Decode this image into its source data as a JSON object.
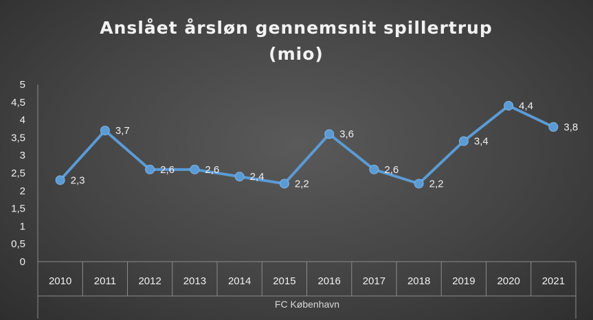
{
  "chart_data": {
    "type": "line",
    "title_line1": "Anslået årsløn gennemsnit spillertrup",
    "title_line2": "(mio)",
    "xlabel": "FC København",
    "ylabel": "",
    "categories": [
      "2010",
      "2011",
      "2012",
      "2013",
      "2014",
      "2015",
      "2016",
      "2017",
      "2018",
      "2019",
      "2020",
      "2021"
    ],
    "values": [
      2.3,
      3.7,
      2.6,
      2.6,
      2.4,
      2.2,
      3.6,
      2.6,
      2.2,
      3.4,
      4.4,
      3.8
    ],
    "data_labels": [
      "2,3",
      "3,7",
      "2,6",
      "2,6",
      "2,4",
      "2,2",
      "3,6",
      "2,6",
      "2,2",
      "3,4",
      "4,4",
      "3,8"
    ],
    "y_ticks": [
      0,
      0.5,
      1,
      1.5,
      2,
      2.5,
      3,
      3.5,
      4,
      4.5,
      5
    ],
    "y_tick_labels": [
      "0",
      "0,5",
      "1",
      "1,5",
      "2",
      "2,5",
      "3",
      "3,5",
      "4",
      "4,5",
      "5"
    ],
    "ylim": [
      0,
      5
    ],
    "grid": false,
    "legend": "none",
    "colors": {
      "line": "#5b9bd5",
      "marker": "#5b9bd5",
      "axis": "#8c8c8c",
      "text": "#f0f0f0"
    }
  }
}
